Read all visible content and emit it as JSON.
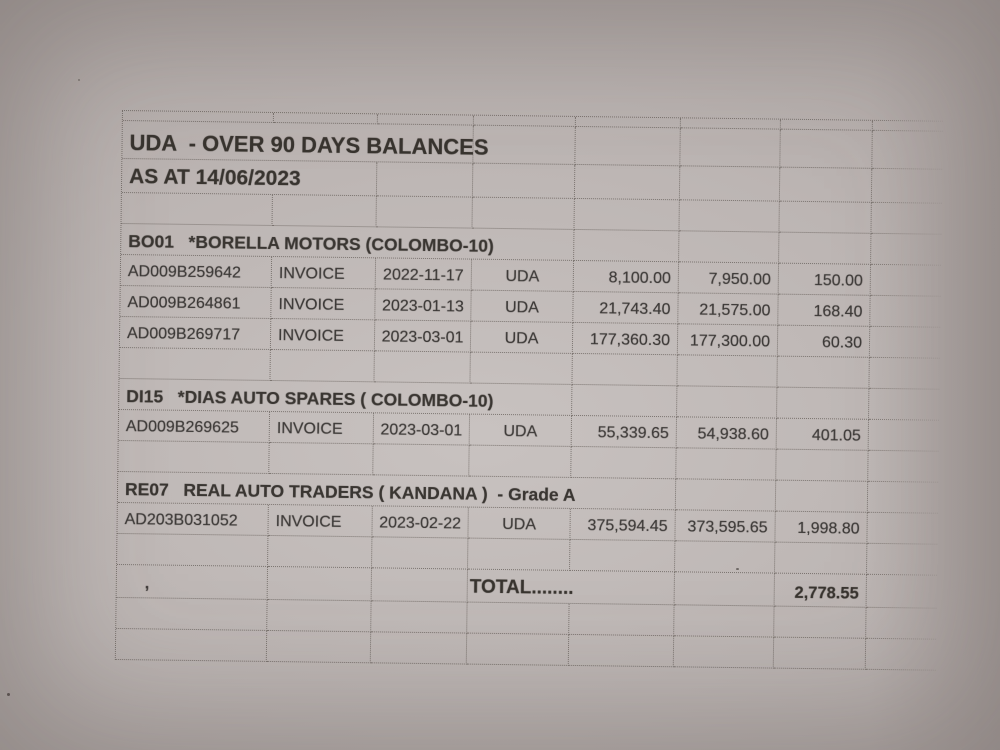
{
  "report": {
    "title": "UDA  - OVER 90 DAYS BALANCES",
    "as_at": "AS AT 14/06/2023",
    "sections": [
      {
        "header": "BO01   *BORELLA MOTORS (COLOMBO-10)",
        "rows": [
          {
            "doc_no": "AD009B259642",
            "type": "INVOICE",
            "date": "2022-11-17",
            "branch": "UDA",
            "amount": "8,100.00",
            "settled": "7,950.00",
            "balance": "150.00"
          },
          {
            "doc_no": "AD009B264861",
            "type": "INVOICE",
            "date": "2023-01-13",
            "branch": "UDA",
            "amount": "21,743.40",
            "settled": "21,575.00",
            "balance": "168.40"
          },
          {
            "doc_no": "AD009B269717",
            "type": "INVOICE",
            "date": "2023-03-01",
            "branch": "UDA",
            "amount": "177,360.30",
            "settled": "177,300.00",
            "balance": "60.30"
          }
        ]
      },
      {
        "header": "DI15   *DIAS AUTO SPARES ( COLOMBO-10)",
        "rows": [
          {
            "doc_no": "AD009B269625",
            "type": "INVOICE",
            "date": "2023-03-01",
            "branch": "UDA",
            "amount": "55,339.65",
            "settled": "54,938.60",
            "balance": "401.05"
          }
        ]
      },
      {
        "header": "RE07   REAL AUTO TRADERS ( KANDANA )  - Grade A",
        "rows": [
          {
            "doc_no": "AD203B031052",
            "type": "INVOICE",
            "date": "2023-02-22",
            "branch": "UDA",
            "amount": "375,594.45",
            "settled": "373,595.65",
            "balance": "1,998.80"
          }
        ]
      }
    ],
    "total_row": {
      "note": ",",
      "label": "TOTAL........",
      "value": "2,778.55"
    }
  },
  "colors": {
    "paper": "#b9b2b0",
    "ink": "#3d3a38",
    "gridline": "#8f8a86"
  }
}
